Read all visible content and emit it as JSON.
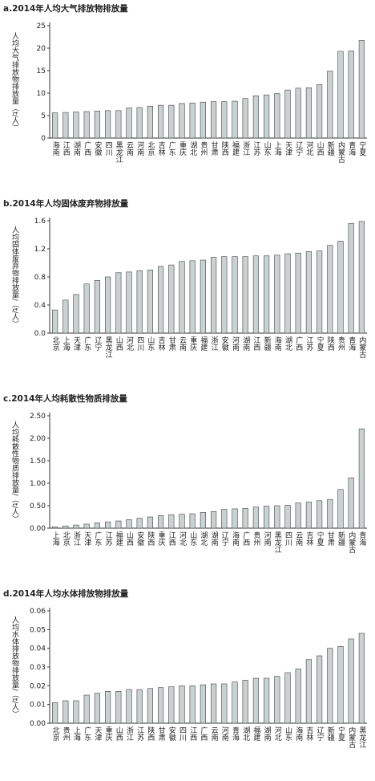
{
  "chart_data": [
    {
      "type": "bar",
      "title": "a.2014年人均大气排放物排放量",
      "y_label": "人均大气排放物排放量（t/人）",
      "categories": [
        "海南",
        "江西",
        "湖南",
        "广西",
        "安徽",
        "四川",
        "黑龙江",
        "云南",
        "河南",
        "北京",
        "吉林",
        "广东",
        "重庆",
        "湖北",
        "贵州",
        "甘肃",
        "陕西",
        "福建",
        "浙江",
        "江苏",
        "山东",
        "上海",
        "天津",
        "辽宁",
        "河北",
        "山西",
        "新疆",
        "内蒙古",
        "青海",
        "宁夏"
      ],
      "values": [
        5.6,
        5.7,
        5.8,
        5.9,
        6.0,
        6.1,
        6.1,
        6.7,
        6.8,
        7.1,
        7.3,
        7.3,
        7.7,
        7.8,
        8.0,
        8.1,
        8.1,
        8.2,
        8.8,
        9.4,
        9.6,
        9.9,
        10.7,
        11.1,
        11.2,
        11.9,
        14.9,
        19.3,
        19.4,
        21.7
      ],
      "color": "#c9d1d1",
      "ylim": [
        0,
        25
      ],
      "yticks": [
        0,
        5,
        10,
        15,
        20,
        25
      ]
    },
    {
      "type": "bar",
      "title": "b.2014年人均固体废弃物排放量",
      "y_label": "人均固体废弃物排放量/（t/人）",
      "categories": [
        "北京",
        "上海",
        "天津",
        "广东",
        "辽宁",
        "黑龙江",
        "山西",
        "河北",
        "四川",
        "山东",
        "吉林",
        "甘肃",
        "云南",
        "重庆",
        "福建",
        "浙江",
        "安徽",
        "河南",
        "湖南",
        "江西",
        "新疆",
        "海南",
        "湖北",
        "广西",
        "江苏",
        "宁夏",
        "陕西",
        "贵州",
        "青海",
        "内蒙古"
      ],
      "values": [
        0.33,
        0.47,
        0.55,
        0.7,
        0.75,
        0.8,
        0.86,
        0.87,
        0.89,
        0.9,
        0.95,
        0.97,
        1.02,
        1.03,
        1.04,
        1.08,
        1.09,
        1.09,
        1.09,
        1.1,
        1.1,
        1.11,
        1.13,
        1.14,
        1.16,
        1.17,
        1.25,
        1.31,
        1.56,
        1.59
      ],
      "color": "#c9d1d1",
      "ylim": [
        0,
        1.6
      ],
      "yticks": [
        {
          "value": 0,
          "label": "0.0"
        },
        0.4,
        0.8,
        1.2,
        1.6
      ]
    },
    {
      "type": "bar",
      "title": "c.2014年人均耗散性物质排放量",
      "y_label": "人均耗散性物质排放量/（t/人）",
      "categories": [
        "上海",
        "北京",
        "浙江",
        "天津",
        "广东",
        "江苏",
        "福建",
        "山西",
        "安徽",
        "陕西",
        "重庆",
        "江西",
        "河北",
        "山东",
        "湖北",
        "湖南",
        "辽宁",
        "海南",
        "广西",
        "贵州",
        "河南",
        "黑龙江",
        "四川",
        "云南",
        "吉林",
        "宁夏",
        "甘肃",
        "新疆",
        "内蒙古",
        "青海"
      ],
      "values": [
        0.03,
        0.05,
        0.07,
        0.09,
        0.12,
        0.14,
        0.16,
        0.19,
        0.22,
        0.25,
        0.28,
        0.3,
        0.31,
        0.32,
        0.35,
        0.37,
        0.42,
        0.43,
        0.44,
        0.47,
        0.49,
        0.5,
        0.51,
        0.56,
        0.58,
        0.61,
        0.64,
        0.86,
        1.12,
        2.21
      ],
      "color": "#c9d1d1",
      "ylim": [
        0,
        2.5
      ],
      "yticks": [
        {
          "value": 0,
          "label": "0.00"
        },
        {
          "value": 0.5,
          "label": "0.50"
        },
        {
          "value": 1,
          "label": "1.00"
        },
        {
          "value": 1.5,
          "label": "1.50"
        },
        {
          "value": 2,
          "label": "2.00"
        },
        {
          "value": 2.5,
          "label": "2.50"
        }
      ]
    },
    {
      "type": "bar",
      "title": "d.2014年人均水体排放物排放量",
      "y_label": "人均水体排放物排放量/（t/人）",
      "categories": [
        "北京",
        "贵州",
        "上海",
        "广东",
        "天津",
        "重庆",
        "山西",
        "浙江",
        "江苏",
        "陕西",
        "甘肃",
        "安徽",
        "四川",
        "江西",
        "广西",
        "云南",
        "河南",
        "青海",
        "湖北",
        "福建",
        "湖南",
        "河北",
        "山东",
        "海南",
        "吉林",
        "辽宁",
        "新疆",
        "宁夏",
        "内蒙古",
        "黑龙江"
      ],
      "values": [
        0.011,
        0.012,
        0.012,
        0.015,
        0.016,
        0.017,
        0.017,
        0.018,
        0.018,
        0.0185,
        0.019,
        0.0195,
        0.02,
        0.02,
        0.0205,
        0.021,
        0.021,
        0.022,
        0.023,
        0.024,
        0.024,
        0.025,
        0.027,
        0.029,
        0.034,
        0.036,
        0.04,
        0.041,
        0.045,
        0.048
      ],
      "color": "#c9d1d1",
      "ylim": [
        0,
        0.06
      ],
      "yticks": [
        {
          "value": 0,
          "label": "0.00"
        },
        0.01,
        0.02,
        0.03,
        0.04,
        0.05,
        0.06
      ]
    }
  ]
}
